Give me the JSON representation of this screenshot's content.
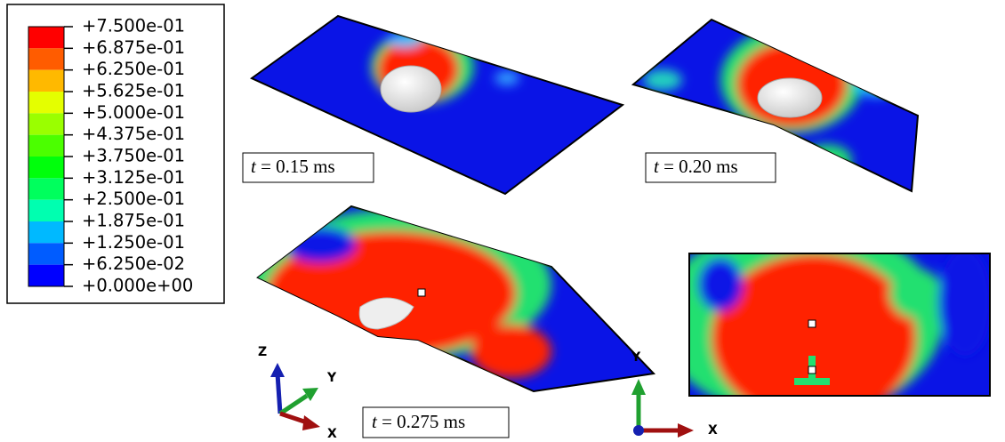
{
  "legend": {
    "levels": [
      "+7.500e-01",
      "+6.875e-01",
      "+6.250e-01",
      "+5.625e-01",
      "+5.000e-01",
      "+4.375e-01",
      "+3.750e-01",
      "+3.125e-01",
      "+2.500e-01",
      "+1.875e-01",
      "+1.250e-01",
      "+6.250e-02",
      "+0.000e+00"
    ]
  },
  "panels": [
    {
      "time_symbol": "t",
      "time_value": "= 0.15 ms"
    },
    {
      "time_symbol": "t",
      "time_value": "= 0.20 ms"
    },
    {
      "time_symbol": "t",
      "time_value": "= 0.275 ms"
    }
  ],
  "triads": [
    {
      "labels": [
        "Z",
        "Y",
        "X"
      ]
    },
    {
      "labels": [
        "Y",
        "X"
      ]
    }
  ]
}
